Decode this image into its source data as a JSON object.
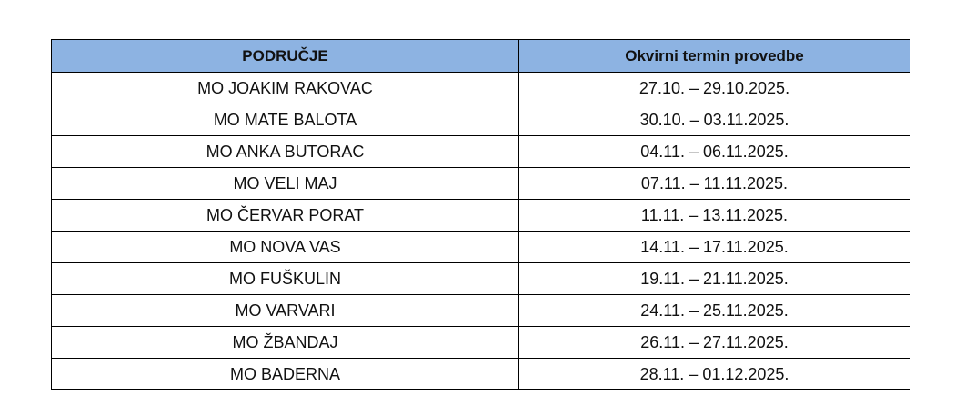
{
  "table": {
    "headers": [
      "PODRUČJE",
      "Okvirni termin provedbe"
    ],
    "header_color": "#8db3e2",
    "rows": [
      [
        "MO JOAKIM RAKOVAC",
        "27.10. – 29.10.2025."
      ],
      [
        "MO MATE BALOTA",
        "30.10. – 03.11.2025."
      ],
      [
        "MO ANKA BUTORAC",
        "04.11. – 06.11.2025."
      ],
      [
        "MO VELI MAJ",
        "07.11. – 11.11.2025."
      ],
      [
        "MO ČERVAR PORAT",
        "11.11. – 13.11.2025."
      ],
      [
        "MO NOVA VAS",
        "14.11. – 17.11.2025."
      ],
      [
        "MO FUŠKULIN",
        "19.11. – 21.11.2025."
      ],
      [
        "MO VARVARI",
        "24.11. – 25.11.2025."
      ],
      [
        "MO ŽBANDAJ",
        "26.11. – 27.11.2025."
      ],
      [
        "MO BADERNA",
        "28.11. – 01.12.2025."
      ]
    ]
  }
}
